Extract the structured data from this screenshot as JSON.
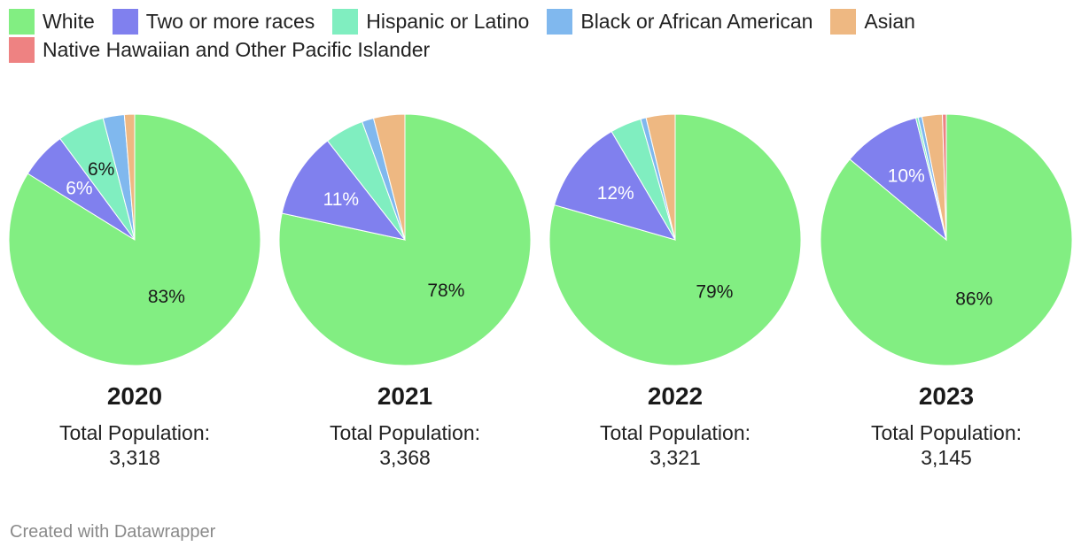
{
  "legend": [
    {
      "label": "White",
      "color": "#82ee82"
    },
    {
      "label": "Two or more races",
      "color": "#8080ee"
    },
    {
      "label": "Hispanic or Latino",
      "color": "#80eec0"
    },
    {
      "label": "Black or African American",
      "color": "#80b8ee"
    },
    {
      "label": "Asian",
      "color": "#eeb882"
    },
    {
      "label": "Native Hawaiian and Other Pacific Islander",
      "color": "#ee8282"
    }
  ],
  "chart_data": [
    {
      "type": "pie",
      "title": "2020",
      "total_label": "Total Population:",
      "total_value": "3,318",
      "slices": [
        {
          "name": "White",
          "value": 83,
          "label": "83%"
        },
        {
          "name": "Two or more races",
          "value": 6,
          "label": "6%"
        },
        {
          "name": "Hispanic or Latino",
          "value": 6,
          "label": "6%"
        },
        {
          "name": "Black or African American",
          "value": 2.7,
          "label": ""
        },
        {
          "name": "Asian",
          "value": 1.3,
          "label": ""
        },
        {
          "name": "Native Hawaiian and Other Pacific Islander",
          "value": 0,
          "label": ""
        }
      ]
    },
    {
      "type": "pie",
      "title": "2021",
      "total_label": "Total Population:",
      "total_value": "3,368",
      "slices": [
        {
          "name": "White",
          "value": 78,
          "label": "78%"
        },
        {
          "name": "Two or more races",
          "value": 11,
          "label": "11%"
        },
        {
          "name": "Hispanic or Latino",
          "value": 5,
          "label": ""
        },
        {
          "name": "Black or African American",
          "value": 1.5,
          "label": ""
        },
        {
          "name": "Asian",
          "value": 4,
          "label": ""
        },
        {
          "name": "Native Hawaiian and Other Pacific Islander",
          "value": 0,
          "label": ""
        }
      ]
    },
    {
      "type": "pie",
      "title": "2022",
      "total_label": "Total Population:",
      "total_value": "3,321",
      "slices": [
        {
          "name": "White",
          "value": 79,
          "label": "79%"
        },
        {
          "name": "Two or more races",
          "value": 12,
          "label": "12%"
        },
        {
          "name": "Hispanic or Latino",
          "value": 4,
          "label": ""
        },
        {
          "name": "Black or African American",
          "value": 0.7,
          "label": ""
        },
        {
          "name": "Asian",
          "value": 3.7,
          "label": ""
        },
        {
          "name": "Native Hawaiian and Other Pacific Islander",
          "value": 0,
          "label": ""
        }
      ]
    },
    {
      "type": "pie",
      "title": "2023",
      "total_label": "Total Population:",
      "total_value": "3,145",
      "slices": [
        {
          "name": "White",
          "value": 86,
          "label": "86%"
        },
        {
          "name": "Two or more races",
          "value": 10,
          "label": "10%"
        },
        {
          "name": "Hispanic or Latino",
          "value": 0.3,
          "label": ""
        },
        {
          "name": "Black or African American",
          "value": 0.5,
          "label": ""
        },
        {
          "name": "Asian",
          "value": 2.6,
          "label": ""
        },
        {
          "name": "Native Hawaiian and Other Pacific Islander",
          "value": 0.5,
          "label": ""
        }
      ]
    }
  ],
  "footer": "Created with Datawrapper"
}
